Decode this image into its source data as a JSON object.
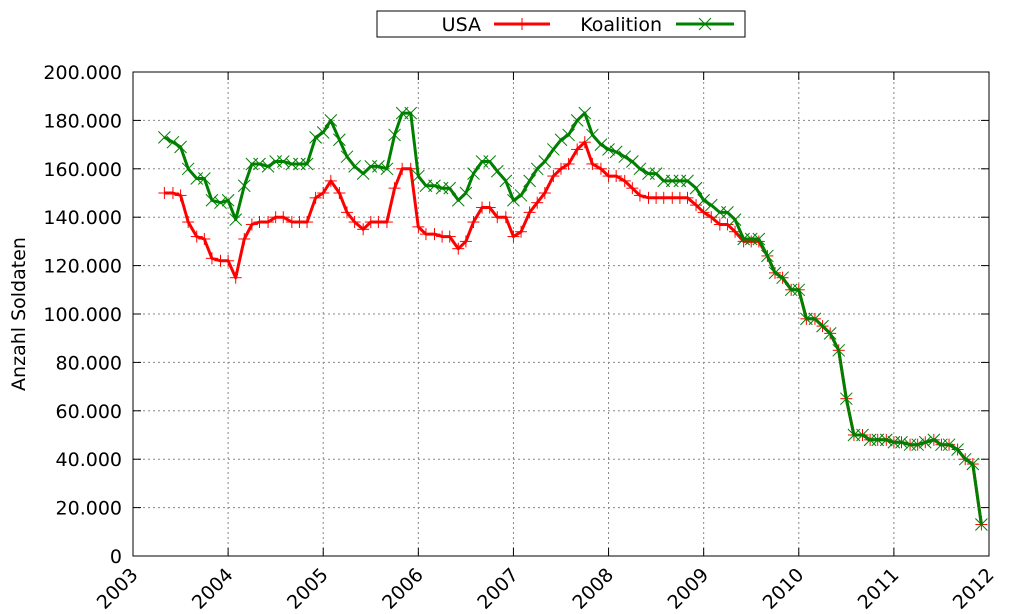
{
  "chart_data": {
    "type": "line",
    "title": "",
    "xlabel": "",
    "ylabel": "Anzahl Soldaten",
    "xlim": [
      2003.0,
      2012.0
    ],
    "ylim": [
      0,
      200000
    ],
    "grid": true,
    "legend_position": "top",
    "x_ticks": [
      "2003",
      "2004",
      "2005",
      "2006",
      "2007",
      "2008",
      "2009",
      "2010",
      "2011",
      "2012"
    ],
    "y_ticks": [
      "0",
      "20.000",
      "40.000",
      "60.000",
      "80.000",
      "100.000",
      "120.000",
      "140.000",
      "160.000",
      "180.000",
      "200.000"
    ],
    "series": [
      {
        "name": "USA",
        "color": "#ff0000",
        "marker": "plus",
        "x": [
          2003.33,
          2003.42,
          2003.5,
          2003.58,
          2003.67,
          2003.75,
          2003.83,
          2003.92,
          2004.0,
          2004.08,
          2004.17,
          2004.25,
          2004.33,
          2004.42,
          2004.5,
          2004.58,
          2004.67,
          2004.75,
          2004.83,
          2004.92,
          2005.0,
          2005.08,
          2005.17,
          2005.25,
          2005.33,
          2005.42,
          2005.5,
          2005.58,
          2005.67,
          2005.75,
          2005.83,
          2005.92,
          2006.0,
          2006.08,
          2006.17,
          2006.25,
          2006.33,
          2006.42,
          2006.5,
          2006.58,
          2006.67,
          2006.75,
          2006.83,
          2006.92,
          2007.0,
          2007.08,
          2007.17,
          2007.25,
          2007.33,
          2007.42,
          2007.5,
          2007.58,
          2007.67,
          2007.75,
          2007.83,
          2007.92,
          2008.0,
          2008.08,
          2008.17,
          2008.25,
          2008.33,
          2008.42,
          2008.5,
          2008.58,
          2008.67,
          2008.75,
          2008.83,
          2008.92,
          2009.0,
          2009.08,
          2009.17,
          2009.25,
          2009.33,
          2009.42,
          2009.5,
          2009.58,
          2009.67,
          2009.75,
          2009.83,
          2009.92,
          2010.0,
          2010.08,
          2010.17,
          2010.25,
          2010.33,
          2010.42,
          2010.5,
          2010.58,
          2010.67,
          2010.75,
          2010.83,
          2010.92,
          2011.0,
          2011.08,
          2011.17,
          2011.25,
          2011.33,
          2011.42,
          2011.5,
          2011.58,
          2011.67,
          2011.75,
          2011.83,
          2011.92
        ],
        "y": [
          150000,
          150000,
          149000,
          138000,
          132000,
          131000,
          123000,
          122000,
          122000,
          115000,
          131000,
          137000,
          138000,
          138000,
          140000,
          140000,
          138000,
          138000,
          138000,
          148000,
          150000,
          155000,
          150000,
          142000,
          138000,
          135000,
          138000,
          138000,
          138000,
          152000,
          160000,
          160000,
          136000,
          133000,
          133000,
          132000,
          132000,
          127000,
          130000,
          138000,
          144000,
          144000,
          140000,
          140000,
          132000,
          134000,
          142000,
          146000,
          150000,
          157000,
          160000,
          162000,
          168000,
          171000,
          162000,
          160000,
          157000,
          157000,
          155000,
          152000,
          149000,
          148000,
          148000,
          148000,
          148000,
          148000,
          148000,
          145000,
          142000,
          140000,
          137000,
          137000,
          134000,
          130000,
          130000,
          130000,
          124000,
          117000,
          115000,
          110000,
          110000,
          98000,
          98000,
          95000,
          92000,
          85000,
          65000,
          50000,
          50000,
          48000,
          48000,
          48000,
          47000,
          47000,
          46000,
          46000,
          47000,
          48000,
          46000,
          46000,
          44000,
          40000,
          38000,
          13000
        ]
      },
      {
        "name": "Koalition",
        "color": "#008000",
        "marker": "cross",
        "x": [
          2003.33,
          2003.42,
          2003.5,
          2003.58,
          2003.67,
          2003.75,
          2003.83,
          2003.92,
          2004.0,
          2004.08,
          2004.17,
          2004.25,
          2004.33,
          2004.42,
          2004.5,
          2004.58,
          2004.67,
          2004.75,
          2004.83,
          2004.92,
          2005.0,
          2005.08,
          2005.17,
          2005.25,
          2005.33,
          2005.42,
          2005.5,
          2005.58,
          2005.67,
          2005.75,
          2005.83,
          2005.92,
          2006.0,
          2006.08,
          2006.17,
          2006.25,
          2006.33,
          2006.42,
          2006.5,
          2006.58,
          2006.67,
          2006.75,
          2006.83,
          2006.92,
          2007.0,
          2007.08,
          2007.17,
          2007.25,
          2007.33,
          2007.42,
          2007.5,
          2007.58,
          2007.67,
          2007.75,
          2007.83,
          2007.92,
          2008.0,
          2008.08,
          2008.17,
          2008.25,
          2008.33,
          2008.42,
          2008.5,
          2008.58,
          2008.67,
          2008.75,
          2008.83,
          2008.92,
          2009.0,
          2009.08,
          2009.17,
          2009.25,
          2009.33,
          2009.42,
          2009.5,
          2009.58,
          2009.67,
          2009.75,
          2009.83,
          2009.92,
          2010.0,
          2010.08,
          2010.17,
          2010.25,
          2010.33,
          2010.42,
          2010.5,
          2010.58,
          2010.67,
          2010.75,
          2010.83,
          2010.92,
          2011.0,
          2011.08,
          2011.17,
          2011.25,
          2011.33,
          2011.42,
          2011.5,
          2011.58,
          2011.67,
          2011.75,
          2011.83,
          2011.92
        ],
        "y": [
          173000,
          171000,
          169000,
          160000,
          156000,
          156000,
          147000,
          146000,
          147000,
          139000,
          153000,
          162000,
          162000,
          161000,
          163000,
          163000,
          162000,
          162000,
          162000,
          173000,
          175000,
          180000,
          172000,
          165000,
          161000,
          158000,
          161000,
          161000,
          160000,
          174000,
          183000,
          183000,
          157000,
          153000,
          153000,
          152000,
          152000,
          147000,
          150000,
          158000,
          163000,
          163000,
          159000,
          155000,
          147000,
          149000,
          155000,
          160000,
          163000,
          168000,
          172000,
          174000,
          180000,
          183000,
          174000,
          170000,
          168000,
          167000,
          165000,
          163000,
          160000,
          158000,
          158000,
          155000,
          155000,
          155000,
          155000,
          152000,
          147000,
          145000,
          142000,
          142000,
          139000,
          131000,
          131000,
          131000,
          124000,
          117000,
          115000,
          110000,
          110000,
          98000,
          98000,
          95000,
          92000,
          85000,
          65000,
          50000,
          50000,
          48000,
          48000,
          48000,
          47000,
          47000,
          46000,
          46000,
          47000,
          48000,
          46000,
          46000,
          44000,
          40000,
          38000,
          13000
        ]
      }
    ]
  }
}
